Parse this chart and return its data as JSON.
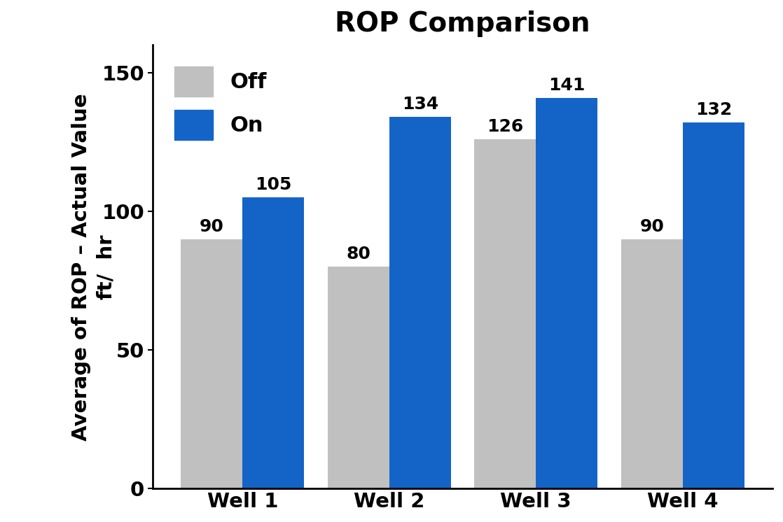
{
  "title": "ROP Comparison",
  "ylabel_line1": "Average of ROP – Actual Value",
  "ylabel_line2": "ft/  hr",
  "categories": [
    "Well 1",
    "Well 2",
    "Well 3",
    "Well 4"
  ],
  "off_values": [
    90,
    80,
    126,
    90
  ],
  "on_values": [
    105,
    134,
    141,
    132
  ],
  "off_color": "#c0c0c0",
  "on_color": "#1464c8",
  "ylim": [
    0,
    160
  ],
  "yticks": [
    0,
    50,
    100,
    150
  ],
  "bar_width": 0.42,
  "legend_labels": [
    "Off",
    "On"
  ],
  "title_fontsize": 28,
  "label_fontsize": 21,
  "tick_fontsize": 21,
  "annot_fontsize": 18,
  "legend_fontsize": 22,
  "background_color": "#ffffff"
}
